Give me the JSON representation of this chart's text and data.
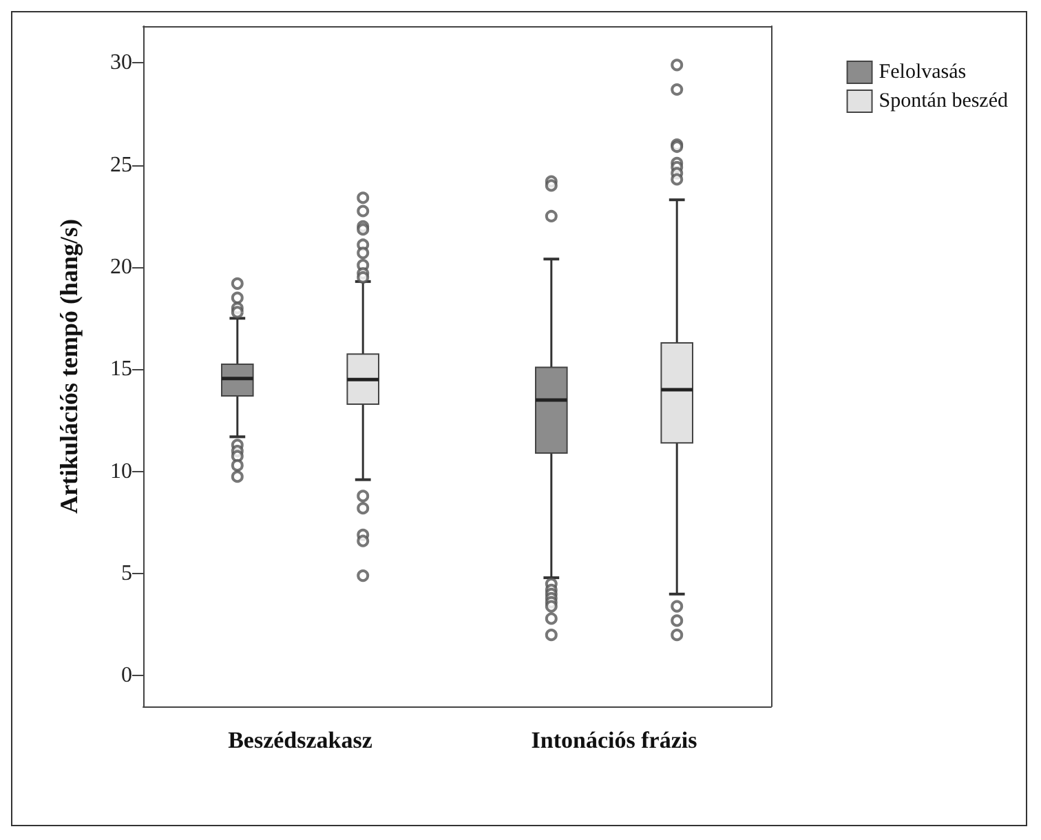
{
  "chart_data": {
    "type": "box",
    "ylabel": "Artikulációs tempó (hang/s)",
    "categories": [
      "Beszédszakasz",
      "Intonációs frázis"
    ],
    "ylim": [
      -1.5,
      31.8
    ],
    "yticks": [
      0,
      5,
      10,
      15,
      20,
      25,
      30
    ],
    "grid": false,
    "legend": "top right",
    "series": [
      {
        "name": "Felolvasás",
        "color": "#8c8c8c",
        "boxes": [
          {
            "low": 11.7,
            "q1": 13.7,
            "median": 14.55,
            "q3": 15.25,
            "high": 17.5,
            "outliers": [
              19.2,
              18.5,
              18.0,
              17.8,
              11.3,
              11.0,
              10.75,
              10.3,
              9.75
            ]
          },
          {
            "low": 4.8,
            "q1": 10.9,
            "median": 13.5,
            "q3": 15.1,
            "high": 20.4,
            "outliers": [
              24.2,
              24.0,
              22.5,
              4.5,
              4.2,
              4.0,
              3.8,
              3.6,
              3.4,
              2.8,
              2.0
            ]
          }
        ]
      },
      {
        "name": "Spontán beszéd",
        "color": "#e2e2e2",
        "boxes": [
          {
            "low": 9.6,
            "q1": 13.3,
            "median": 14.5,
            "q3": 15.75,
            "high": 19.3,
            "outliers": [
              23.4,
              22.75,
              22.0,
              21.85,
              21.1,
              20.7,
              20.1,
              19.7,
              19.5,
              8.8,
              8.2,
              6.9,
              6.6,
              4.9
            ]
          },
          {
            "low": 4.0,
            "q1": 11.4,
            "median": 14.0,
            "q3": 16.3,
            "high": 23.3,
            "outliers": [
              29.9,
              28.7,
              26.0,
              25.9,
              25.1,
              24.9,
              24.6,
              24.3,
              3.4,
              2.7,
              2.0
            ]
          }
        ]
      }
    ]
  }
}
